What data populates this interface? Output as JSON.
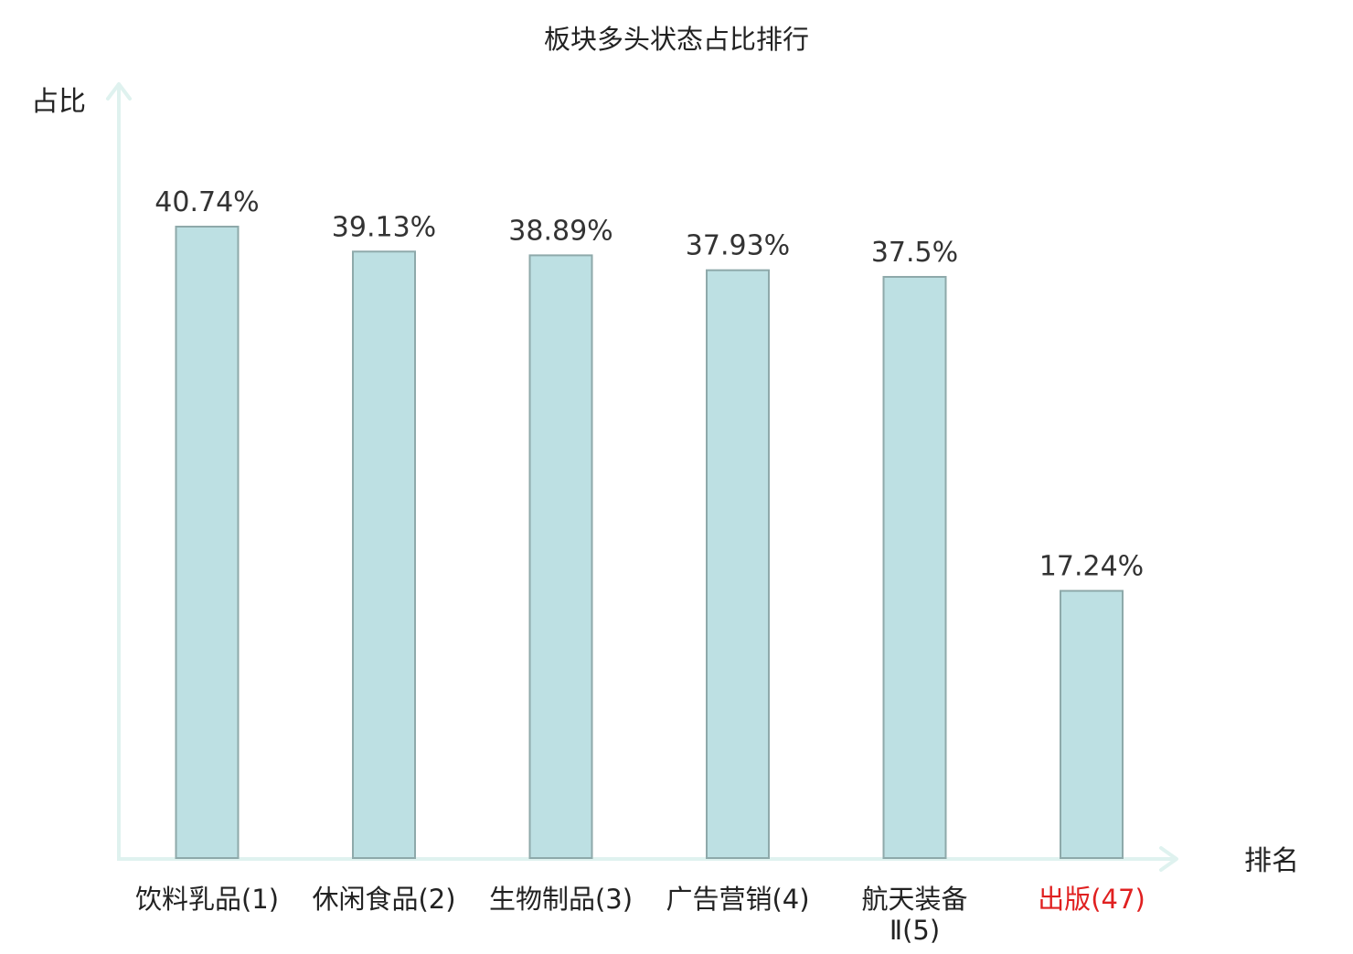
{
  "chart_data": {
    "type": "bar",
    "title": "板块多头状态占比排行",
    "ylabel": "占比",
    "xlabel": "排名",
    "categories": [
      [
        "饮料乳品(1)"
      ],
      [
        "休闲食品(2)"
      ],
      [
        "生物制品(3)"
      ],
      [
        "广告营销(4)"
      ],
      [
        "航天装备",
        "Ⅱ(5)"
      ],
      [
        "出版(47)"
      ]
    ],
    "values": [
      40.74,
      39.13,
      38.89,
      37.93,
      37.5,
      17.24
    ],
    "value_labels": [
      "40.74%",
      "39.13%",
      "38.89%",
      "37.93%",
      "37.5%",
      "17.24%"
    ],
    "highlight_index": 5,
    "ylim": [
      0,
      40.74
    ],
    "grid": false,
    "legend": "none",
    "colors": {
      "bar_fill": "#bde0e3",
      "bar_stroke": "#8ea9aa",
      "axis": "#dff2ef",
      "text": "#333333",
      "highlight_text": "#e02020"
    }
  }
}
